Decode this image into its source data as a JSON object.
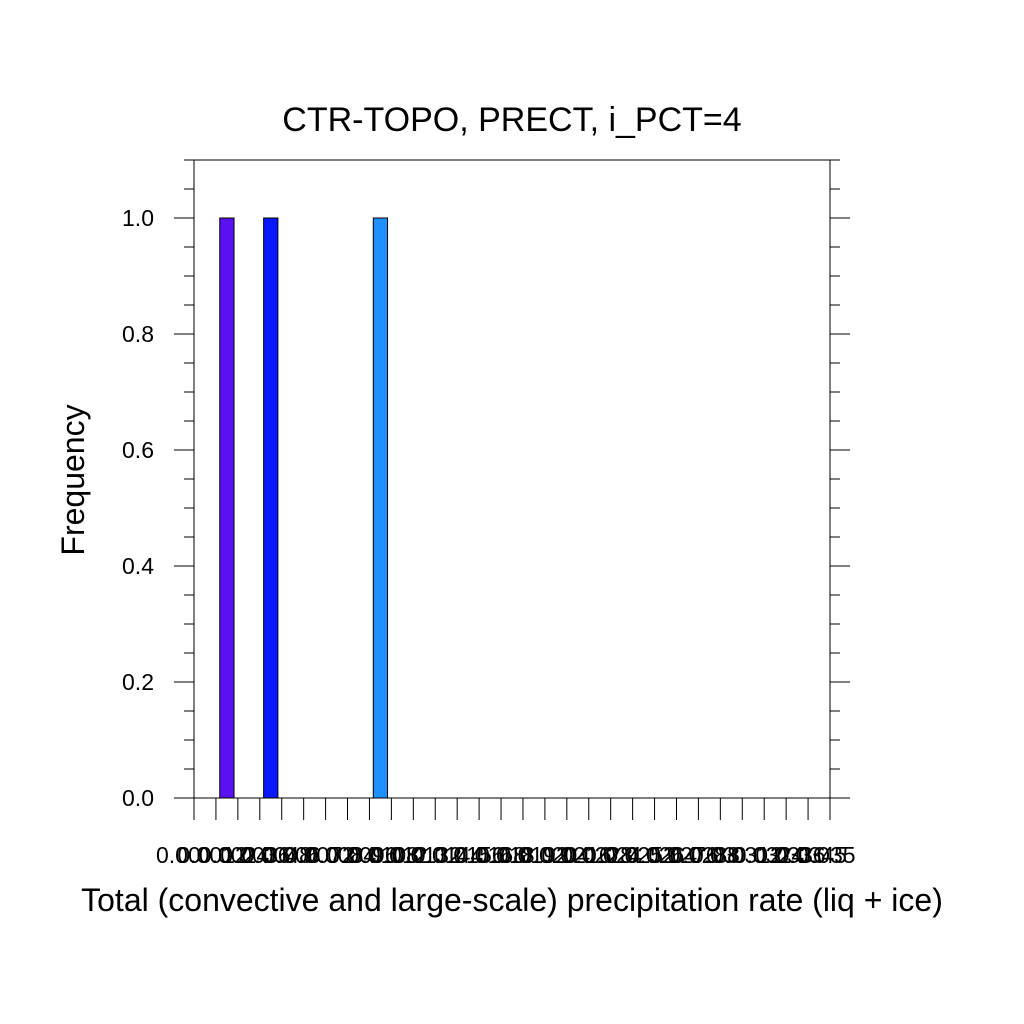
{
  "chart_data": {
    "type": "bar",
    "title": "CTR-TOPO, PRECT, i_PCT=4",
    "xlabel": "Total (convective and large-scale) precipitation rate (liq + ice)",
    "ylabel": "Frequency",
    "ylim": [
      0,
      1.1
    ],
    "yticks": [
      "0.0",
      "0.2",
      "0.4",
      "0.6",
      "0.8",
      "1.0"
    ],
    "bin_count": 29,
    "x_tick_labels_note": "x tick labels overlap heavily and are illegible in the original; rendered as an overlapping run",
    "x_tick_labels": [
      "0.00",
      "0.0012",
      "0.0024",
      "0.0036",
      "0.0048",
      "0.006",
      "0.0072",
      "0.0084",
      "0.0096",
      "0.0108",
      "0.012",
      "0.0132",
      "0.0144",
      "0.0156",
      "0.0168",
      "0.018",
      "0.0192",
      "0.0204",
      "0.0216",
      "0.0228",
      "0.024",
      "0.0252",
      "0.0264",
      "0.0276",
      "0.0288",
      "0.03",
      "0.0312",
      "0.0324",
      "0.0336",
      "0.0345",
      "0.035"
    ],
    "grid": false,
    "bars": [
      {
        "bin": 1,
        "value": 1.0,
        "color": "#5A10F0"
      },
      {
        "bin": 3,
        "value": 1.0,
        "color": "#0A18FF"
      },
      {
        "bin": 8,
        "value": 1.0,
        "color": "#1E90FF"
      }
    ]
  }
}
